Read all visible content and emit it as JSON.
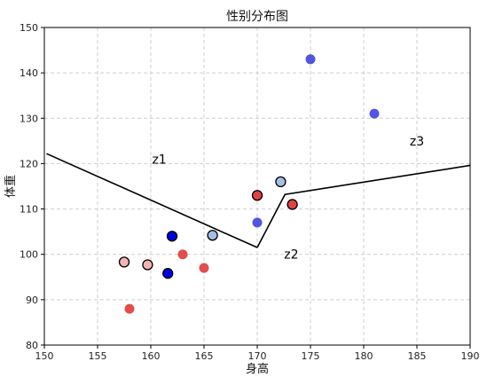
{
  "chart_data": {
    "type": "scatter",
    "title": "性别分布图",
    "xlabel": "身高",
    "ylabel": "体重",
    "xlim": [
      150,
      190
    ],
    "ylim": [
      80,
      150
    ],
    "xticks": [
      "150",
      "155",
      "160",
      "165",
      "170",
      "175",
      "180",
      "185",
      "190"
    ],
    "yticks": [
      "80",
      "90",
      "100",
      "110",
      "120",
      "130",
      "140",
      "150"
    ],
    "grid": true,
    "grid_style": "dashed",
    "points": [
      {
        "x": 175.0,
        "y": 143.0,
        "color": "#4b4be0",
        "edge": false
      },
      {
        "x": 181.0,
        "y": 131.0,
        "color": "#4b4be0",
        "edge": false
      },
      {
        "x": 172.2,
        "y": 116.0,
        "color": "#a7bde3",
        "edge": true
      },
      {
        "x": 170.0,
        "y": 113.0,
        "color": "#e04343",
        "edge": true
      },
      {
        "x": 173.3,
        "y": 111.0,
        "color": "#e04343",
        "edge": true
      },
      {
        "x": 170.0,
        "y": 107.0,
        "color": "#4b4be0",
        "edge": false
      },
      {
        "x": 162.0,
        "y": 104.0,
        "color": "#0000e6",
        "edge": true
      },
      {
        "x": 165.8,
        "y": 104.2,
        "color": "#a7bde3",
        "edge": true
      },
      {
        "x": 163.0,
        "y": 100.0,
        "color": "#e04343",
        "edge": false
      },
      {
        "x": 157.5,
        "y": 98.3,
        "color": "#f2b3b3",
        "edge": true
      },
      {
        "x": 159.7,
        "y": 97.7,
        "color": "#f2b3b3",
        "edge": true
      },
      {
        "x": 165.0,
        "y": 97.0,
        "color": "#e04343",
        "edge": false
      },
      {
        "x": 161.6,
        "y": 95.8,
        "color": "#0000e6",
        "edge": true
      },
      {
        "x": 158.0,
        "y": 88.0,
        "color": "#e04343",
        "edge": false
      }
    ],
    "boundary_lines": [
      {
        "points": [
          [
            150.2,
            122.2
          ],
          [
            170.0,
            101.5
          ]
        ]
      },
      {
        "points": [
          [
            170.0,
            101.5
          ],
          [
            172.6,
            113.2
          ],
          [
            190.0,
            119.6
          ]
        ]
      }
    ],
    "zone_labels": [
      {
        "text": "z1",
        "x": 160.8,
        "y": 121.0
      },
      {
        "text": "z2",
        "x": 173.2,
        "y": 100.0
      },
      {
        "text": "z3",
        "x": 185.0,
        "y": 125.0
      }
    ],
    "colors": {
      "axis": "#000000",
      "grid": "#cfcfcf",
      "line": "#000000",
      "marker_edge": "#000000"
    }
  }
}
